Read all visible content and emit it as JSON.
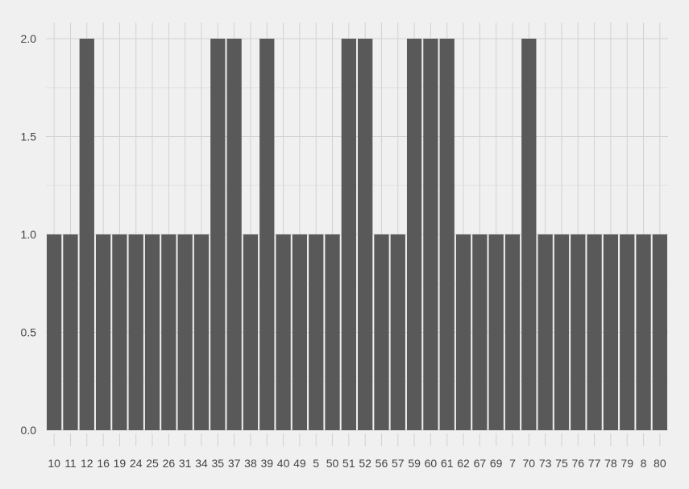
{
  "chart_data": {
    "type": "bar",
    "categories": [
      "10",
      "11",
      "12",
      "16",
      "19",
      "24",
      "25",
      "26",
      "31",
      "34",
      "35",
      "37",
      "38",
      "39",
      "40",
      "49",
      "5",
      "50",
      "51",
      "52",
      "56",
      "57",
      "59",
      "60",
      "61",
      "62",
      "67",
      "69",
      "7",
      "70",
      "73",
      "75",
      "76",
      "77",
      "78",
      "79",
      "8",
      "80"
    ],
    "values": [
      1,
      1,
      2,
      1,
      1,
      1,
      1,
      1,
      1,
      1,
      2,
      2,
      1,
      2,
      1,
      1,
      1,
      1,
      2,
      2,
      1,
      1,
      2,
      2,
      2,
      1,
      1,
      1,
      1,
      2,
      1,
      1,
      1,
      1,
      1,
      1,
      1,
      1
    ],
    "title": "",
    "xlabel": "",
    "ylabel": "",
    "ylim": [
      0,
      2
    ],
    "yticks": [
      "0.0",
      "0.5",
      "1.0",
      "1.5",
      "2.0"
    ],
    "grid": true,
    "colors": {
      "background": "#f0f0f0",
      "bar": "#595959",
      "grid": "#d2d2d2",
      "text": "#444444"
    }
  }
}
